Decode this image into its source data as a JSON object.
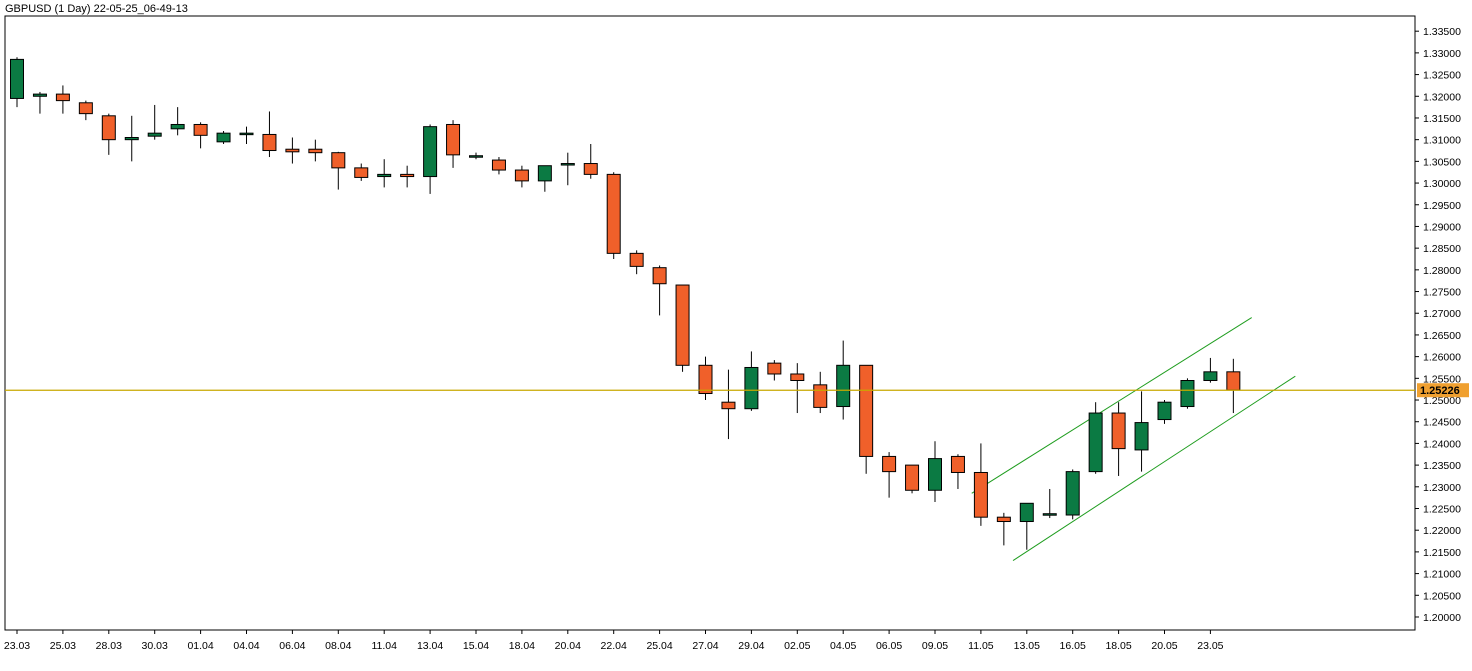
{
  "chart_data": {
    "type": "candlestick",
    "title": "GBPUSD (1 Day) 22-05-25_06-49-13",
    "current_price": {
      "value": 1.25226,
      "label": "1.25226",
      "color": "#f0a030",
      "line_color": "#c8a800"
    },
    "colors": {
      "up": "#0b7a43",
      "down": "#f0602a",
      "wick": "#000000",
      "channel": "#1f9d1f"
    },
    "ylim": [
      1.197,
      1.3385
    ],
    "y_ticks": [
      "1.33500",
      "1.33000",
      "1.32500",
      "1.32000",
      "1.31500",
      "1.31000",
      "1.30500",
      "1.30000",
      "1.29500",
      "1.29000",
      "1.28500",
      "1.28000",
      "1.27500",
      "1.27000",
      "1.26500",
      "1.26000",
      "1.25500",
      "1.25000",
      "1.24500",
      "1.24000",
      "1.23500",
      "1.23000",
      "1.22500",
      "1.22000",
      "1.21500",
      "1.21000",
      "1.20500",
      "1.20000"
    ],
    "x_labels": [
      {
        "index": 0,
        "label": "23.03"
      },
      {
        "index": 2,
        "label": "25.03"
      },
      {
        "index": 4,
        "label": "28.03"
      },
      {
        "index": 6,
        "label": "30.03"
      },
      {
        "index": 8,
        "label": "01.04"
      },
      {
        "index": 10,
        "label": "04.04"
      },
      {
        "index": 12,
        "label": "06.04"
      },
      {
        "index": 14,
        "label": "08.04"
      },
      {
        "index": 16,
        "label": "11.04"
      },
      {
        "index": 18,
        "label": "13.04"
      },
      {
        "index": 20,
        "label": "15.04"
      },
      {
        "index": 22,
        "label": "18.04"
      },
      {
        "index": 24,
        "label": "20.04"
      },
      {
        "index": 26,
        "label": "22.04"
      },
      {
        "index": 28,
        "label": "25.04"
      },
      {
        "index": 30,
        "label": "27.04"
      },
      {
        "index": 32,
        "label": "29.04"
      },
      {
        "index": 34,
        "label": "02.05"
      },
      {
        "index": 36,
        "label": "04.05"
      },
      {
        "index": 38,
        "label": "06.05"
      },
      {
        "index": 40,
        "label": "09.05"
      },
      {
        "index": 42,
        "label": "11.05"
      },
      {
        "index": 44,
        "label": "13.05"
      },
      {
        "index": 46,
        "label": "16.05"
      },
      {
        "index": 48,
        "label": "18.05"
      },
      {
        "index": 50,
        "label": "20.05"
      },
      {
        "index": 52,
        "label": "23.05"
      }
    ],
    "candles": [
      {
        "o": 1.3195,
        "h": 1.329,
        "l": 1.3175,
        "c": 1.3285
      },
      {
        "o": 1.32,
        "h": 1.321,
        "l": 1.316,
        "c": 1.3205
      },
      {
        "o": 1.3205,
        "h": 1.3225,
        "l": 1.316,
        "c": 1.319
      },
      {
        "o": 1.3185,
        "h": 1.319,
        "l": 1.3145,
        "c": 1.316
      },
      {
        "o": 1.3155,
        "h": 1.316,
        "l": 1.3065,
        "c": 1.31
      },
      {
        "o": 1.31,
        "h": 1.3155,
        "l": 1.305,
        "c": 1.3105
      },
      {
        "o": 1.3108,
        "h": 1.318,
        "l": 1.31,
        "c": 1.3115
      },
      {
        "o": 1.3125,
        "h": 1.3175,
        "l": 1.311,
        "c": 1.3135
      },
      {
        "o": 1.3135,
        "h": 1.314,
        "l": 1.308,
        "c": 1.311
      },
      {
        "o": 1.3095,
        "h": 1.312,
        "l": 1.309,
        "c": 1.3115
      },
      {
        "o": 1.3115,
        "h": 1.313,
        "l": 1.309,
        "c": 1.3115
      },
      {
        "o": 1.3112,
        "h": 1.3165,
        "l": 1.306,
        "c": 1.3075
      },
      {
        "o": 1.3078,
        "h": 1.3105,
        "l": 1.3045,
        "c": 1.3072
      },
      {
        "o": 1.3078,
        "h": 1.31,
        "l": 1.305,
        "c": 1.307
      },
      {
        "o": 1.307,
        "h": 1.3072,
        "l": 1.2985,
        "c": 1.3035
      },
      {
        "o": 1.3035,
        "h": 1.3045,
        "l": 1.3005,
        "c": 1.3013
      },
      {
        "o": 1.3015,
        "h": 1.3055,
        "l": 1.299,
        "c": 1.302
      },
      {
        "o": 1.302,
        "h": 1.304,
        "l": 1.299,
        "c": 1.3015
      },
      {
        "o": 1.3015,
        "h": 1.3135,
        "l": 1.2975,
        "c": 1.313
      },
      {
        "o": 1.3135,
        "h": 1.3145,
        "l": 1.3035,
        "c": 1.3065
      },
      {
        "o": 1.3063,
        "h": 1.307,
        "l": 1.3055,
        "c": 1.3063
      },
      {
        "o": 1.3053,
        "h": 1.306,
        "l": 1.302,
        "c": 1.303
      },
      {
        "o": 1.303,
        "h": 1.304,
        "l": 1.299,
        "c": 1.3005
      },
      {
        "o": 1.3005,
        "h": 1.304,
        "l": 1.298,
        "c": 1.304
      },
      {
        "o": 1.3045,
        "h": 1.307,
        "l": 1.2995,
        "c": 1.3045
      },
      {
        "o": 1.3045,
        "h": 1.309,
        "l": 1.301,
        "c": 1.302
      },
      {
        "o": 1.302,
        "h": 1.3025,
        "l": 1.2825,
        "c": 1.2838
      },
      {
        "o": 1.2838,
        "h": 1.2845,
        "l": 1.279,
        "c": 1.2808
      },
      {
        "o": 1.2805,
        "h": 1.281,
        "l": 1.2695,
        "c": 1.2768
      },
      {
        "o": 1.2765,
        "h": 1.2765,
        "l": 1.2565,
        "c": 1.258
      },
      {
        "o": 1.258,
        "h": 1.26,
        "l": 1.25,
        "c": 1.2515
      },
      {
        "o": 1.2495,
        "h": 1.257,
        "l": 1.241,
        "c": 1.248
      },
      {
        "o": 1.248,
        "h": 1.2612,
        "l": 1.2475,
        "c": 1.2575
      },
      {
        "o": 1.2585,
        "h": 1.2592,
        "l": 1.2545,
        "c": 1.256
      },
      {
        "o": 1.256,
        "h": 1.2585,
        "l": 1.247,
        "c": 1.2545
      },
      {
        "o": 1.2535,
        "h": 1.2565,
        "l": 1.247,
        "c": 1.2483
      },
      {
        "o": 1.2485,
        "h": 1.2637,
        "l": 1.2455,
        "c": 1.258
      },
      {
        "o": 1.258,
        "h": 1.258,
        "l": 1.233,
        "c": 1.237
      },
      {
        "o": 1.237,
        "h": 1.238,
        "l": 1.2275,
        "c": 1.2335
      },
      {
        "o": 1.235,
        "h": 1.235,
        "l": 1.2285,
        "c": 1.2292
      },
      {
        "o": 1.2292,
        "h": 1.2405,
        "l": 1.2265,
        "c": 1.2365
      },
      {
        "o": 1.237,
        "h": 1.2375,
        "l": 1.2295,
        "c": 1.2333
      },
      {
        "o": 1.2333,
        "h": 1.24,
        "l": 1.221,
        "c": 1.223
      },
      {
        "o": 1.223,
        "h": 1.224,
        "l": 1.2165,
        "c": 1.222
      },
      {
        "o": 1.222,
        "h": 1.226,
        "l": 1.2155,
        "c": 1.2262
      },
      {
        "o": 1.2238,
        "h": 1.2295,
        "l": 1.2228,
        "c": 1.2238
      },
      {
        "o": 1.2235,
        "h": 1.234,
        "l": 1.2225,
        "c": 1.2335
      },
      {
        "o": 1.2335,
        "h": 1.2495,
        "l": 1.233,
        "c": 1.247
      },
      {
        "o": 1.247,
        "h": 1.2495,
        "l": 1.2325,
        "c": 1.2388
      },
      {
        "o": 1.2385,
        "h": 1.252,
        "l": 1.2335,
        "c": 1.2448
      },
      {
        "o": 1.2455,
        "h": 1.25,
        "l": 1.2445,
        "c": 1.2495
      },
      {
        "o": 1.2485,
        "h": 1.255,
        "l": 1.248,
        "c": 1.2545
      },
      {
        "o": 1.2545,
        "h": 1.2597,
        "l": 1.254,
        "c": 1.2565
      },
      {
        "o": 1.2565,
        "h": 1.2595,
        "l": 1.247,
        "c": 1.2523
      }
    ],
    "channel_lines": [
      {
        "start": {
          "index": 41.6,
          "price": 1.2285
        },
        "end": {
          "index": 53.8,
          "price": 1.269
        }
      },
      {
        "start": {
          "index": 43.4,
          "price": 1.213
        },
        "end": {
          "index": 55.7,
          "price": 1.2555
        }
      }
    ]
  }
}
